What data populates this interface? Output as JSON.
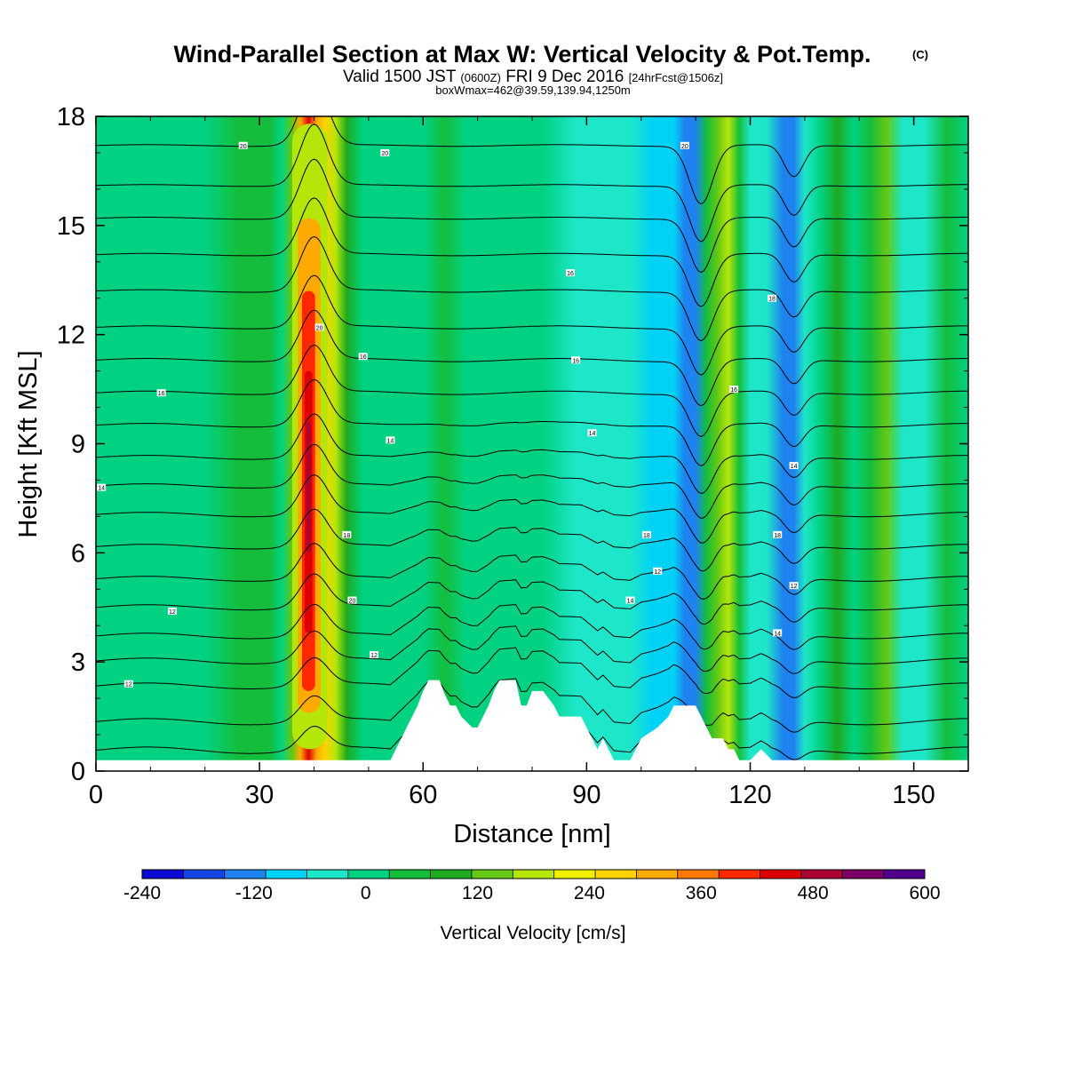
{
  "chart_data": {
    "type": "heatmap",
    "title": "Wind-Parallel Section at Max W: Vertical Velocity & Pot.Temp.",
    "title_mark": "(C)",
    "subtitle": {
      "prefix": "Valid 1500 JST",
      "utc": "(0600Z)",
      "date": "FRI 9 Dec 2016",
      "forecast": "[24hrFcst@1506z]"
    },
    "info_line": "boxWmax=462@39.59,139.94,1250m",
    "xlabel": "Distance [nm]",
    "ylabel": "Height [Kft MSL]",
    "xlim": [
      0,
      160
    ],
    "ylim": [
      0,
      18
    ],
    "x_ticks": [
      "0",
      "30",
      "60",
      "90",
      "120",
      "150"
    ],
    "y_ticks": [
      "0",
      "3",
      "6",
      "9",
      "12",
      "15",
      "18"
    ],
    "colorbar": {
      "label": "Vertical Velocity [cm/s]",
      "range": [
        -240,
        600
      ],
      "tick_labels": [
        "-240",
        "-120",
        "0",
        "120",
        "240",
        "360",
        "480",
        "600"
      ],
      "colors": [
        "#0a0ad2",
        "#1446e6",
        "#1e82f0",
        "#00d2f5",
        "#1ee6c8",
        "#00d282",
        "#14be3c",
        "#1eaa1e",
        "#64c814",
        "#b4e60a",
        "#f0f000",
        "#ffd200",
        "#ffaa00",
        "#ff7800",
        "#ff2800",
        "#dc0000",
        "#aa0032",
        "#7c0064",
        "#50008c"
      ]
    },
    "wind_columns": [
      {
        "x": 0,
        "w": 0
      },
      {
        "x": 20,
        "w": 12
      },
      {
        "x": 26,
        "w": 28
      },
      {
        "x": 30,
        "w": 60
      },
      {
        "x": 32,
        "w": 45
      },
      {
        "x": 34,
        "w": 15
      },
      {
        "x": 36,
        "w": 120
      },
      {
        "x": 37.5,
        "w": 300
      },
      {
        "x": 39,
        "w": 462
      },
      {
        "x": 40.5,
        "w": 330
      },
      {
        "x": 42,
        "w": 250
      },
      {
        "x": 44,
        "w": 170
      },
      {
        "x": 46,
        "w": 70
      },
      {
        "x": 49,
        "w": 10
      },
      {
        "x": 55,
        "w": 5
      },
      {
        "x": 60,
        "w": 10
      },
      {
        "x": 64,
        "w": 40
      },
      {
        "x": 68,
        "w": 8
      },
      {
        "x": 75,
        "w": 0
      },
      {
        "x": 82,
        "w": -5
      },
      {
        "x": 88,
        "w": -25
      },
      {
        "x": 93,
        "w": -45
      },
      {
        "x": 98,
        "w": -60
      },
      {
        "x": 102,
        "w": -80
      },
      {
        "x": 106,
        "w": -105
      },
      {
        "x": 108,
        "w": -140
      },
      {
        "x": 110,
        "w": -120
      },
      {
        "x": 112,
        "w": 60
      },
      {
        "x": 114,
        "w": 150
      },
      {
        "x": 116,
        "w": 200
      },
      {
        "x": 118,
        "w": 60
      },
      {
        "x": 120,
        "w": -60
      },
      {
        "x": 123,
        "w": -30
      },
      {
        "x": 126,
        "w": -110
      },
      {
        "x": 128,
        "w": -140
      },
      {
        "x": 130,
        "w": -60
      },
      {
        "x": 133,
        "w": 10
      },
      {
        "x": 136,
        "w": 70
      },
      {
        "x": 139,
        "w": 10
      },
      {
        "x": 142,
        "w": 30
      },
      {
        "x": 145,
        "w": 120
      },
      {
        "x": 148,
        "w": -40
      },
      {
        "x": 152,
        "w": -20
      },
      {
        "x": 156,
        "w": 30
      },
      {
        "x": 160,
        "w": 5
      }
    ],
    "terrain": {
      "x": [
        0,
        50,
        54,
        55,
        56,
        57,
        58,
        59,
        60,
        61,
        63,
        64,
        65,
        66,
        67,
        69,
        70,
        71,
        72,
        73,
        74,
        75,
        77,
        78,
        79,
        80,
        81,
        82,
        84,
        85,
        86,
        87,
        89,
        90,
        91,
        92,
        93,
        94,
        95,
        96,
        98,
        99,
        100,
        103,
        105,
        106,
        107,
        108,
        110,
        111,
        112,
        113,
        114,
        115,
        116,
        117,
        118,
        119,
        120,
        122,
        124,
        126,
        127,
        160
      ],
      "height": [
        0.3,
        0.3,
        0.3,
        0.6,
        0.9,
        1.2,
        1.5,
        1.8,
        2.2,
        2.5,
        2.5,
        2.1,
        1.8,
        1.8,
        1.5,
        1.2,
        1.2,
        1.5,
        1.8,
        2.2,
        2.5,
        2.5,
        2.5,
        1.8,
        1.8,
        2.2,
        2.2,
        2.2,
        1.8,
        1.5,
        1.5,
        1.5,
        1.5,
        1.2,
        0.9,
        0.6,
        0.9,
        0.6,
        0.3,
        0.3,
        0.3,
        0.6,
        0.9,
        1.2,
        1.5,
        1.8,
        1.8,
        1.8,
        1.8,
        1.5,
        1.2,
        0.9,
        0.9,
        0.9,
        0.6,
        0.6,
        0.3,
        0.3,
        0.3,
        0.6,
        0.3,
        0.3,
        0.3,
        0.3
      ]
    },
    "theta_base_heights": [
      0.4,
      1.2,
      2.2,
      2.9,
      3.6,
      4.4,
      5.2,
      6.1,
      7.0,
      7.8,
      8.6,
      9.5,
      10.4,
      11.3,
      12.2,
      13.2,
      14.2,
      15.2,
      16.1,
      17.2
    ],
    "theta_labels": [
      {
        "text": "12",
        "x": 6,
        "h": 2.4
      },
      {
        "text": "12",
        "x": 14,
        "h": 4.4
      },
      {
        "text": "14",
        "x": 1,
        "h": 7.8
      },
      {
        "text": "16",
        "x": 12,
        "h": 10.4
      },
      {
        "text": "20",
        "x": 27,
        "h": 17.2
      },
      {
        "text": "12",
        "x": 51,
        "h": 3.2
      },
      {
        "text": "20",
        "x": 47,
        "h": 4.7
      },
      {
        "text": "18",
        "x": 46,
        "h": 6.5
      },
      {
        "text": "14",
        "x": 54,
        "h": 9.1
      },
      {
        "text": "16",
        "x": 49,
        "h": 11.4
      },
      {
        "text": "20",
        "x": 41,
        "h": 12.2
      },
      {
        "text": "20",
        "x": 53,
        "h": 17.0
      },
      {
        "text": "16",
        "x": 87,
        "h": 13.7
      },
      {
        "text": "16",
        "x": 88,
        "h": 11.3
      },
      {
        "text": "14",
        "x": 91,
        "h": 9.3
      },
      {
        "text": "14",
        "x": 98,
        "h": 4.7
      },
      {
        "text": "12",
        "x": 103,
        "h": 5.5
      },
      {
        "text": "18",
        "x": 101,
        "h": 6.5
      },
      {
        "text": "20",
        "x": 108,
        "h": 17.2
      },
      {
        "text": "16",
        "x": 117,
        "h": 10.5
      },
      {
        "text": "18",
        "x": 124,
        "h": 13.0
      },
      {
        "text": "18",
        "x": 125,
        "h": 6.5
      },
      {
        "text": "12",
        "x": 128,
        "h": 5.1
      },
      {
        "text": "14",
        "x": 125,
        "h": 3.8
      },
      {
        "text": "14",
        "x": 128,
        "h": 8.4
      }
    ]
  }
}
